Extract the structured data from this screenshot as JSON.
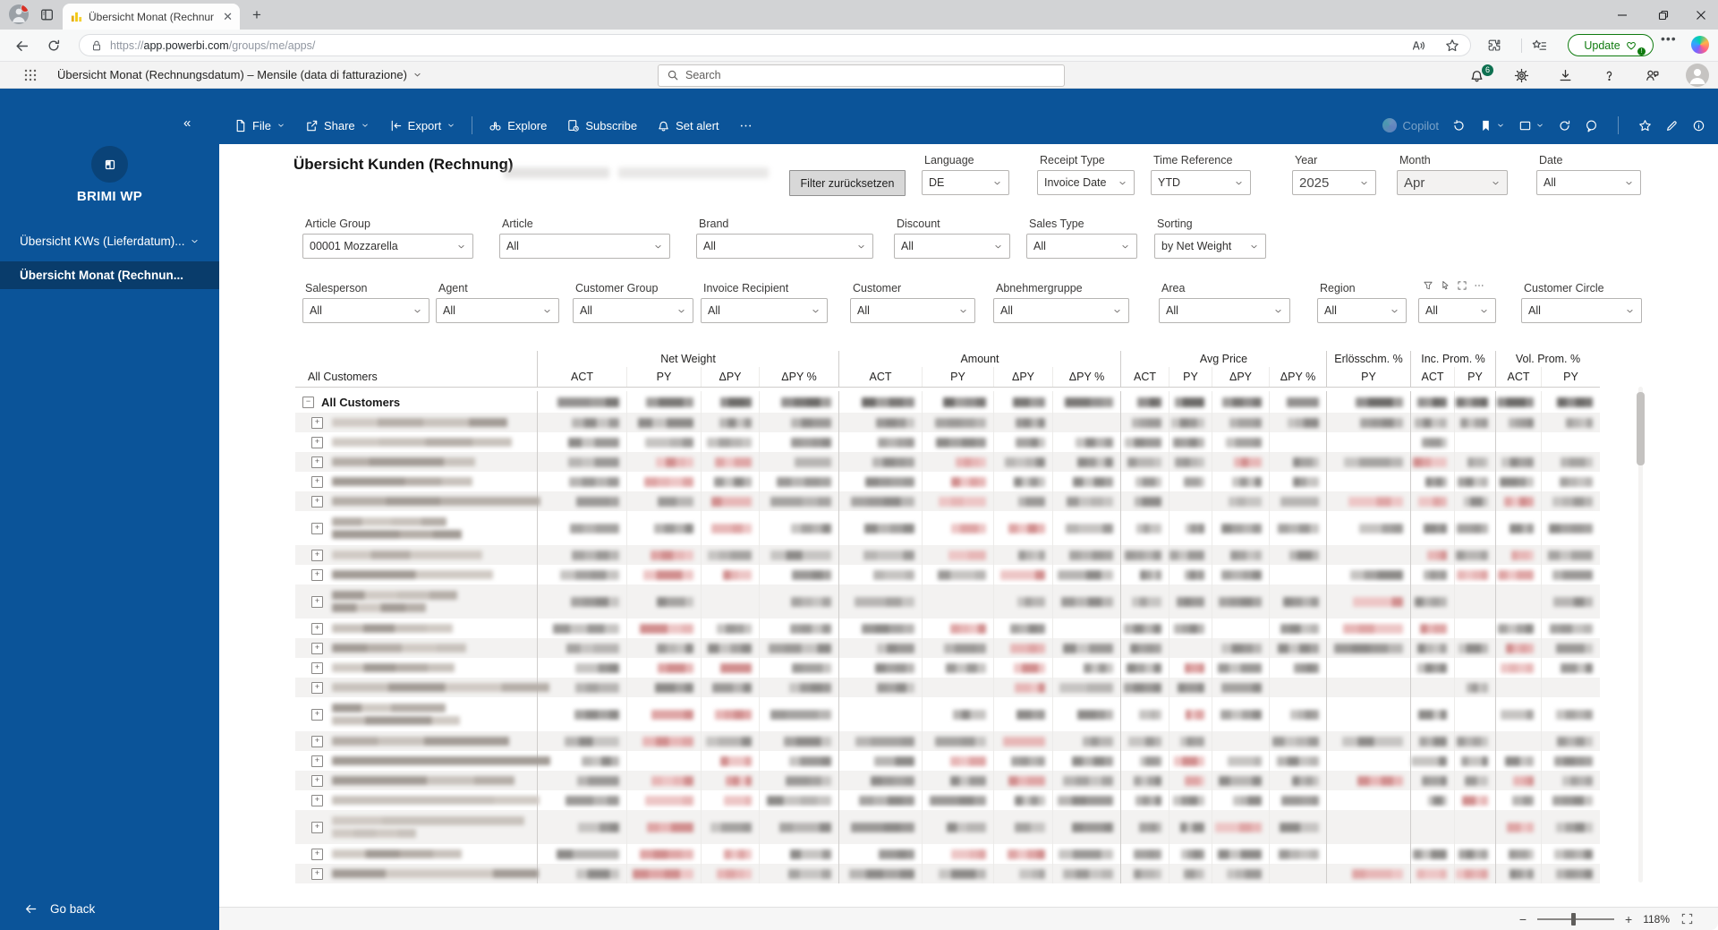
{
  "browser": {
    "tab_title": "Übersicht Monat (Rechnungsdatu",
    "url_scheme": "https://",
    "url_host": "app.powerbi.com",
    "url_path": "/groups/me/apps/",
    "update_label": "Update"
  },
  "pbi_header": {
    "app_title": "Übersicht Monat (Rechnungsdatum) – Mensile (data di fatturazione)",
    "search_placeholder": "Search",
    "notification_count": "6"
  },
  "action_bar": {
    "left": [
      {
        "icon": "file",
        "label": "File",
        "chevron": true
      },
      {
        "icon": "share",
        "label": "Share",
        "chevron": true
      },
      {
        "icon": "export",
        "label": "Export",
        "chevron": true
      },
      {
        "divider": true
      },
      {
        "icon": "explore",
        "label": "Explore"
      },
      {
        "icon": "subscribe",
        "label": "Subscribe"
      },
      {
        "icon": "bell",
        "label": "Set alert"
      },
      {
        "icon": "dots",
        "label": ""
      }
    ],
    "copilot_label": "Copilot",
    "right": [
      {
        "icon": "undo"
      },
      {
        "icon": "bookmark",
        "chevron": true
      },
      {
        "icon": "viewrect",
        "chevron": true
      },
      {
        "icon": "refresh"
      },
      {
        "icon": "comment"
      },
      {
        "divider": true
      },
      {
        "icon": "star"
      },
      {
        "icon": "pencil"
      },
      {
        "icon": "info"
      }
    ]
  },
  "sidebar": {
    "app_name": "BRIMI WP",
    "items": [
      {
        "label": "Übersicht KWs (Lieferdatum)...",
        "selected": false,
        "chevron": true
      },
      {
        "label": "Übersicht Monat (Rechnun...",
        "selected": true,
        "chevron": false
      }
    ],
    "go_back": "Go back"
  },
  "report": {
    "title": "Übersicht Kunden (Rechnung)",
    "reset_button": "Filter zurücksetzen",
    "filters_row1": [
      {
        "label": "Language",
        "value": "DE"
      },
      {
        "label": "Receipt Type",
        "value": "Invoice Date"
      },
      {
        "label": "Time Reference",
        "value": "YTD"
      },
      {
        "label": "Year",
        "value": "2025"
      },
      {
        "label": "Month",
        "value": "Apr"
      },
      {
        "label": "Date",
        "value": "All"
      }
    ],
    "filters_row2": [
      {
        "label": "Article Group",
        "value": "00001 Mozzarella"
      },
      {
        "label": "Article",
        "value": "All"
      },
      {
        "label": "Brand",
        "value": "All"
      },
      {
        "label": "Discount",
        "value": "All"
      },
      {
        "label": "Sales Type",
        "value": "All"
      },
      {
        "label": "Sorting",
        "value": "by Net Weight"
      }
    ],
    "filters_row3": [
      {
        "label": "Salesperson",
        "value": "All"
      },
      {
        "label": "Agent",
        "value": "All"
      },
      {
        "label": "Customer Group",
        "value": "All"
      },
      {
        "label": "Invoice Recipient",
        "value": "All"
      },
      {
        "label": "Customer",
        "value": "All"
      },
      {
        "label": "Abnehmergruppe",
        "value": "All"
      },
      {
        "label": "Area",
        "value": "All"
      },
      {
        "label": "Region",
        "value": "All"
      },
      {
        "label": "",
        "value": "All",
        "hover_icons": true
      },
      {
        "label": "Customer Circle",
        "value": "All"
      }
    ],
    "zoom_level": "118%"
  },
  "table": {
    "corner_label": "All Customers",
    "first_row_label": "All Customers",
    "groups": [
      {
        "label": "Net Weight",
        "cols": [
          "ACT",
          "PY",
          "ΔPY",
          "ΔPY %"
        ]
      },
      {
        "label": "Amount",
        "cols": [
          "ACT",
          "PY",
          "ΔPY",
          "ΔPY %"
        ]
      },
      {
        "label": "Avg Price",
        "cols": [
          "ACT",
          "PY",
          "ΔPY",
          "ΔPY %"
        ]
      },
      {
        "label": "Erlösschm. %",
        "cols": [
          "PY"
        ]
      },
      {
        "label": "Inc. Prom. %",
        "cols": [
          "ACT",
          "PY"
        ]
      },
      {
        "label": "Vol. Prom. %",
        "cols": [
          "ACT",
          "PY"
        ]
      }
    ],
    "rows": [
      1,
      1,
      1,
      1,
      1,
      2,
      1,
      1,
      2,
      1,
      1,
      1,
      1,
      2,
      1,
      1,
      1,
      1,
      2,
      1,
      1
    ]
  },
  "colors": {
    "chrome_blue": "#0b5499",
    "chrome_blue_dark": "#093c6b",
    "negative_red": "#d18f8f",
    "badge_green": "#0e7050",
    "update_green": "#0f7b0f",
    "pbi_yellow": "#f2c811"
  }
}
